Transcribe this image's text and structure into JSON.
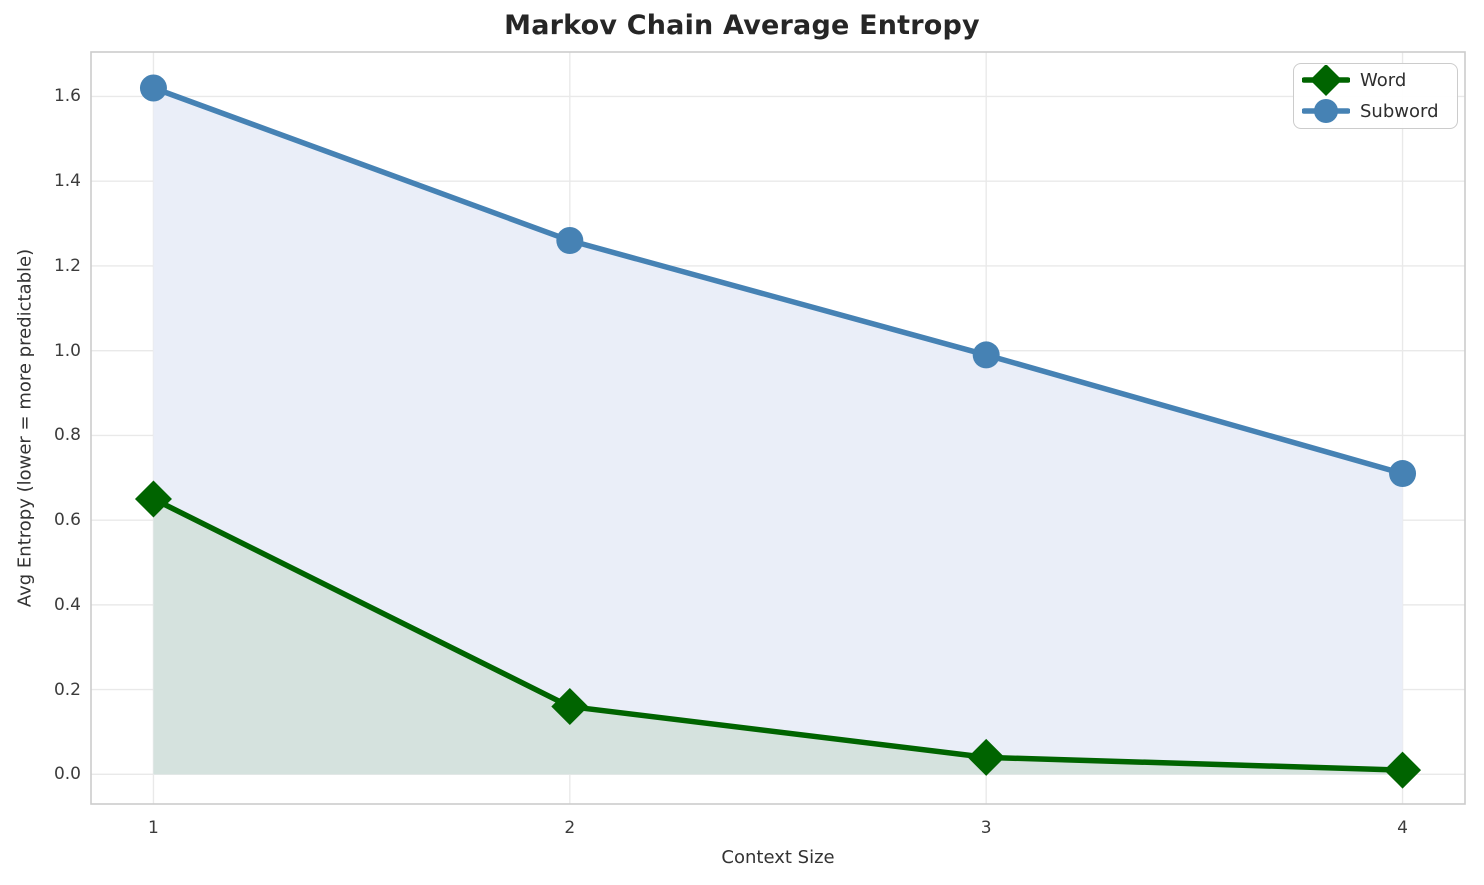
{
  "title": "Markov Chain Average Entropy",
  "chart_data": {
    "type": "line",
    "title": "Markov Chain Average Entropy",
    "xlabel": "Context Size",
    "ylabel": "Avg Entropy (lower = more predictable)",
    "x": [
      1,
      2,
      3,
      4
    ],
    "series": [
      {
        "name": "Word",
        "values": [
          0.65,
          0.16,
          0.04,
          0.01
        ],
        "color": "#006400",
        "marker": "diamond",
        "fill_color": "#d5e2de",
        "fill_to_zero": true
      },
      {
        "name": "Subword",
        "values": [
          1.62,
          1.26,
          0.99,
          0.71
        ],
        "color": "#4682b4",
        "marker": "circle",
        "fill_color": "#eaeef8",
        "fill_to_zero": true
      }
    ],
    "x_ticks": [
      "1",
      "2",
      "3",
      "4"
    ],
    "y_ticks": [
      "0.0",
      "0.2",
      "0.4",
      "0.6",
      "0.8",
      "1.0",
      "1.2",
      "1.4",
      "1.6"
    ],
    "xlim": [
      0.85,
      4.15
    ],
    "ylim": [
      -0.07,
      1.705
    ],
    "grid": true,
    "legend_position": "upper right",
    "legend_items": [
      "Word",
      "Subword"
    ]
  },
  "colors": {
    "word": "#006400",
    "subword": "#4682b4",
    "word_fill": "#d5e2de",
    "subword_fill": "#eaeef8",
    "grid": "#e9e9e9",
    "axes_border": "#cccccc",
    "title_text": "#262626",
    "label_text": "#333333",
    "tick_text": "#3c3c3c",
    "background": "#ffffff"
  }
}
